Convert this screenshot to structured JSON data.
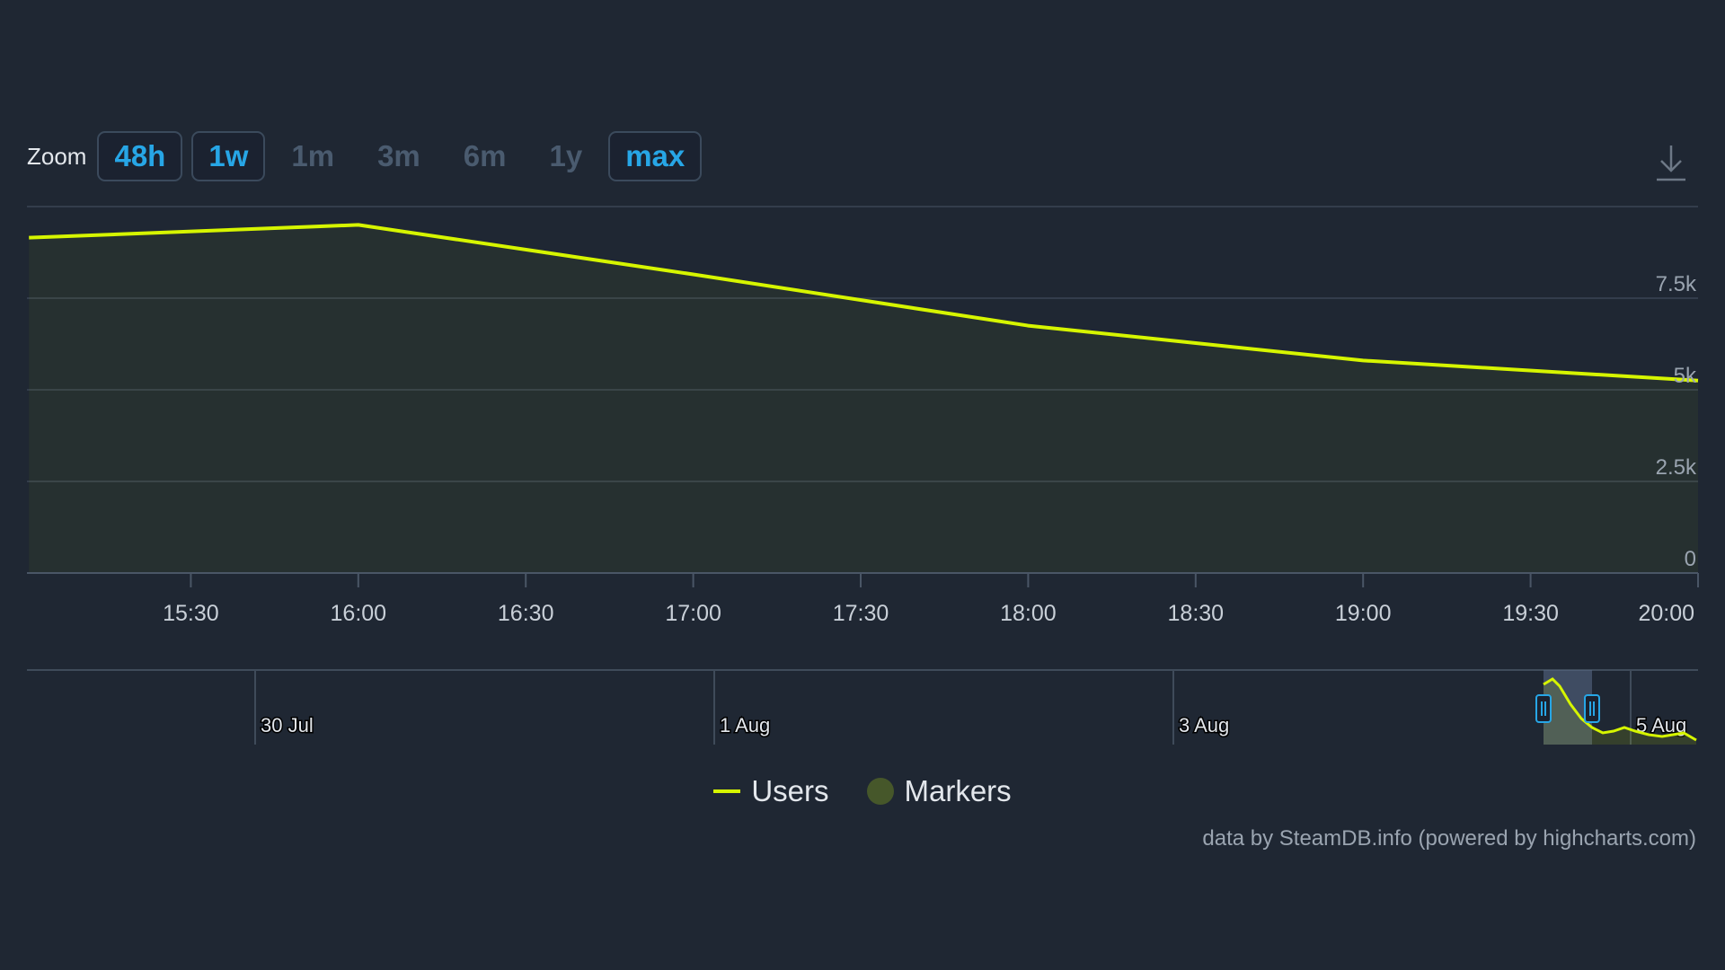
{
  "toolbar": {
    "zoom_label": "Zoom",
    "buttons": [
      {
        "label": "48h",
        "active": true
      },
      {
        "label": "1w",
        "active": true
      },
      {
        "label": "1m",
        "active": false
      },
      {
        "label": "3m",
        "active": false
      },
      {
        "label": "6m",
        "active": false
      },
      {
        "label": "1y",
        "active": false
      },
      {
        "label": "max",
        "active": true
      }
    ],
    "download_icon": "download-icon"
  },
  "chart_data": {
    "type": "area",
    "x_unit": "time",
    "x": [
      "15:01",
      "16:00",
      "17:00",
      "18:00",
      "19:00",
      "20:00"
    ],
    "series": [
      {
        "name": "Users",
        "values": [
          9150,
          9500,
          8150,
          6750,
          5800,
          5250
        ],
        "color": "#d6f500"
      }
    ],
    "ylim": [
      0,
      10000
    ],
    "y_ticks": [
      {
        "value": 0,
        "label": "0"
      },
      {
        "value": 2500,
        "label": "2.5k"
      },
      {
        "value": 5000,
        "label": "5k"
      },
      {
        "value": 7500,
        "label": "7.5k"
      }
    ],
    "x_ticks": [
      "15:30",
      "16:00",
      "16:30",
      "17:00",
      "17:30",
      "18:00",
      "18:30",
      "19:00",
      "19:30",
      "20:00"
    ],
    "grid": true,
    "navigator": {
      "labels": [
        "30 Jul",
        "1 Aug",
        "3 Aug",
        "5 Aug"
      ]
    },
    "legend": {
      "placement": "bottom-center",
      "entries": [
        {
          "label": "Users",
          "color": "#d6f500",
          "symbol": "line"
        },
        {
          "label": "Markers",
          "color": "#46572a",
          "symbol": "circle"
        }
      ]
    }
  },
  "credits": "data by SteamDB.info (powered by highcharts.com)"
}
